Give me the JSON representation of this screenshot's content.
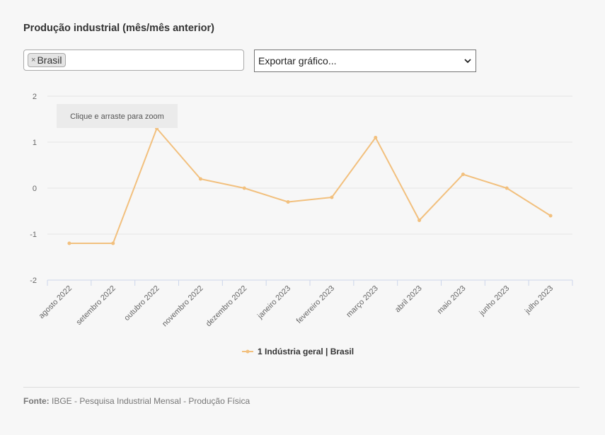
{
  "title": "Produção industrial (mês/mês anterior)",
  "filter": {
    "tag_label": "Brasil",
    "remove_glyph": "×"
  },
  "export": {
    "selected": "Exportar gráfico..."
  },
  "zoom_hint": "Clique e arraste para zoom",
  "source": {
    "label": "Fonte:",
    "text": "IBGE - Pesquisa Industrial Mensal - Produção Física"
  },
  "colors": {
    "series": "#f2c07e",
    "grid": "#e6e6e6",
    "axis": "#ccd6eb"
  },
  "chart_data": {
    "type": "line",
    "categories": [
      "agosto 2022",
      "setembro 2022",
      "outubro 2022",
      "novembro 2022",
      "dezembro 2022",
      "janeiro 2023",
      "fevereiro 2023",
      "março 2023",
      "abril 2023",
      "maio 2023",
      "junho 2023",
      "julho 2023"
    ],
    "series": [
      {
        "name": "1 Indústria geral | Brasil",
        "values": [
          -1.2,
          -1.2,
          1.3,
          0.2,
          0.0,
          -0.3,
          -0.2,
          1.1,
          -0.7,
          0.3,
          0.0,
          -0.6
        ]
      }
    ],
    "ylim": [
      -2,
      2
    ],
    "yticks": [
      -2,
      -1,
      0,
      1,
      2
    ],
    "grid": true,
    "legend": "bottom-center"
  }
}
